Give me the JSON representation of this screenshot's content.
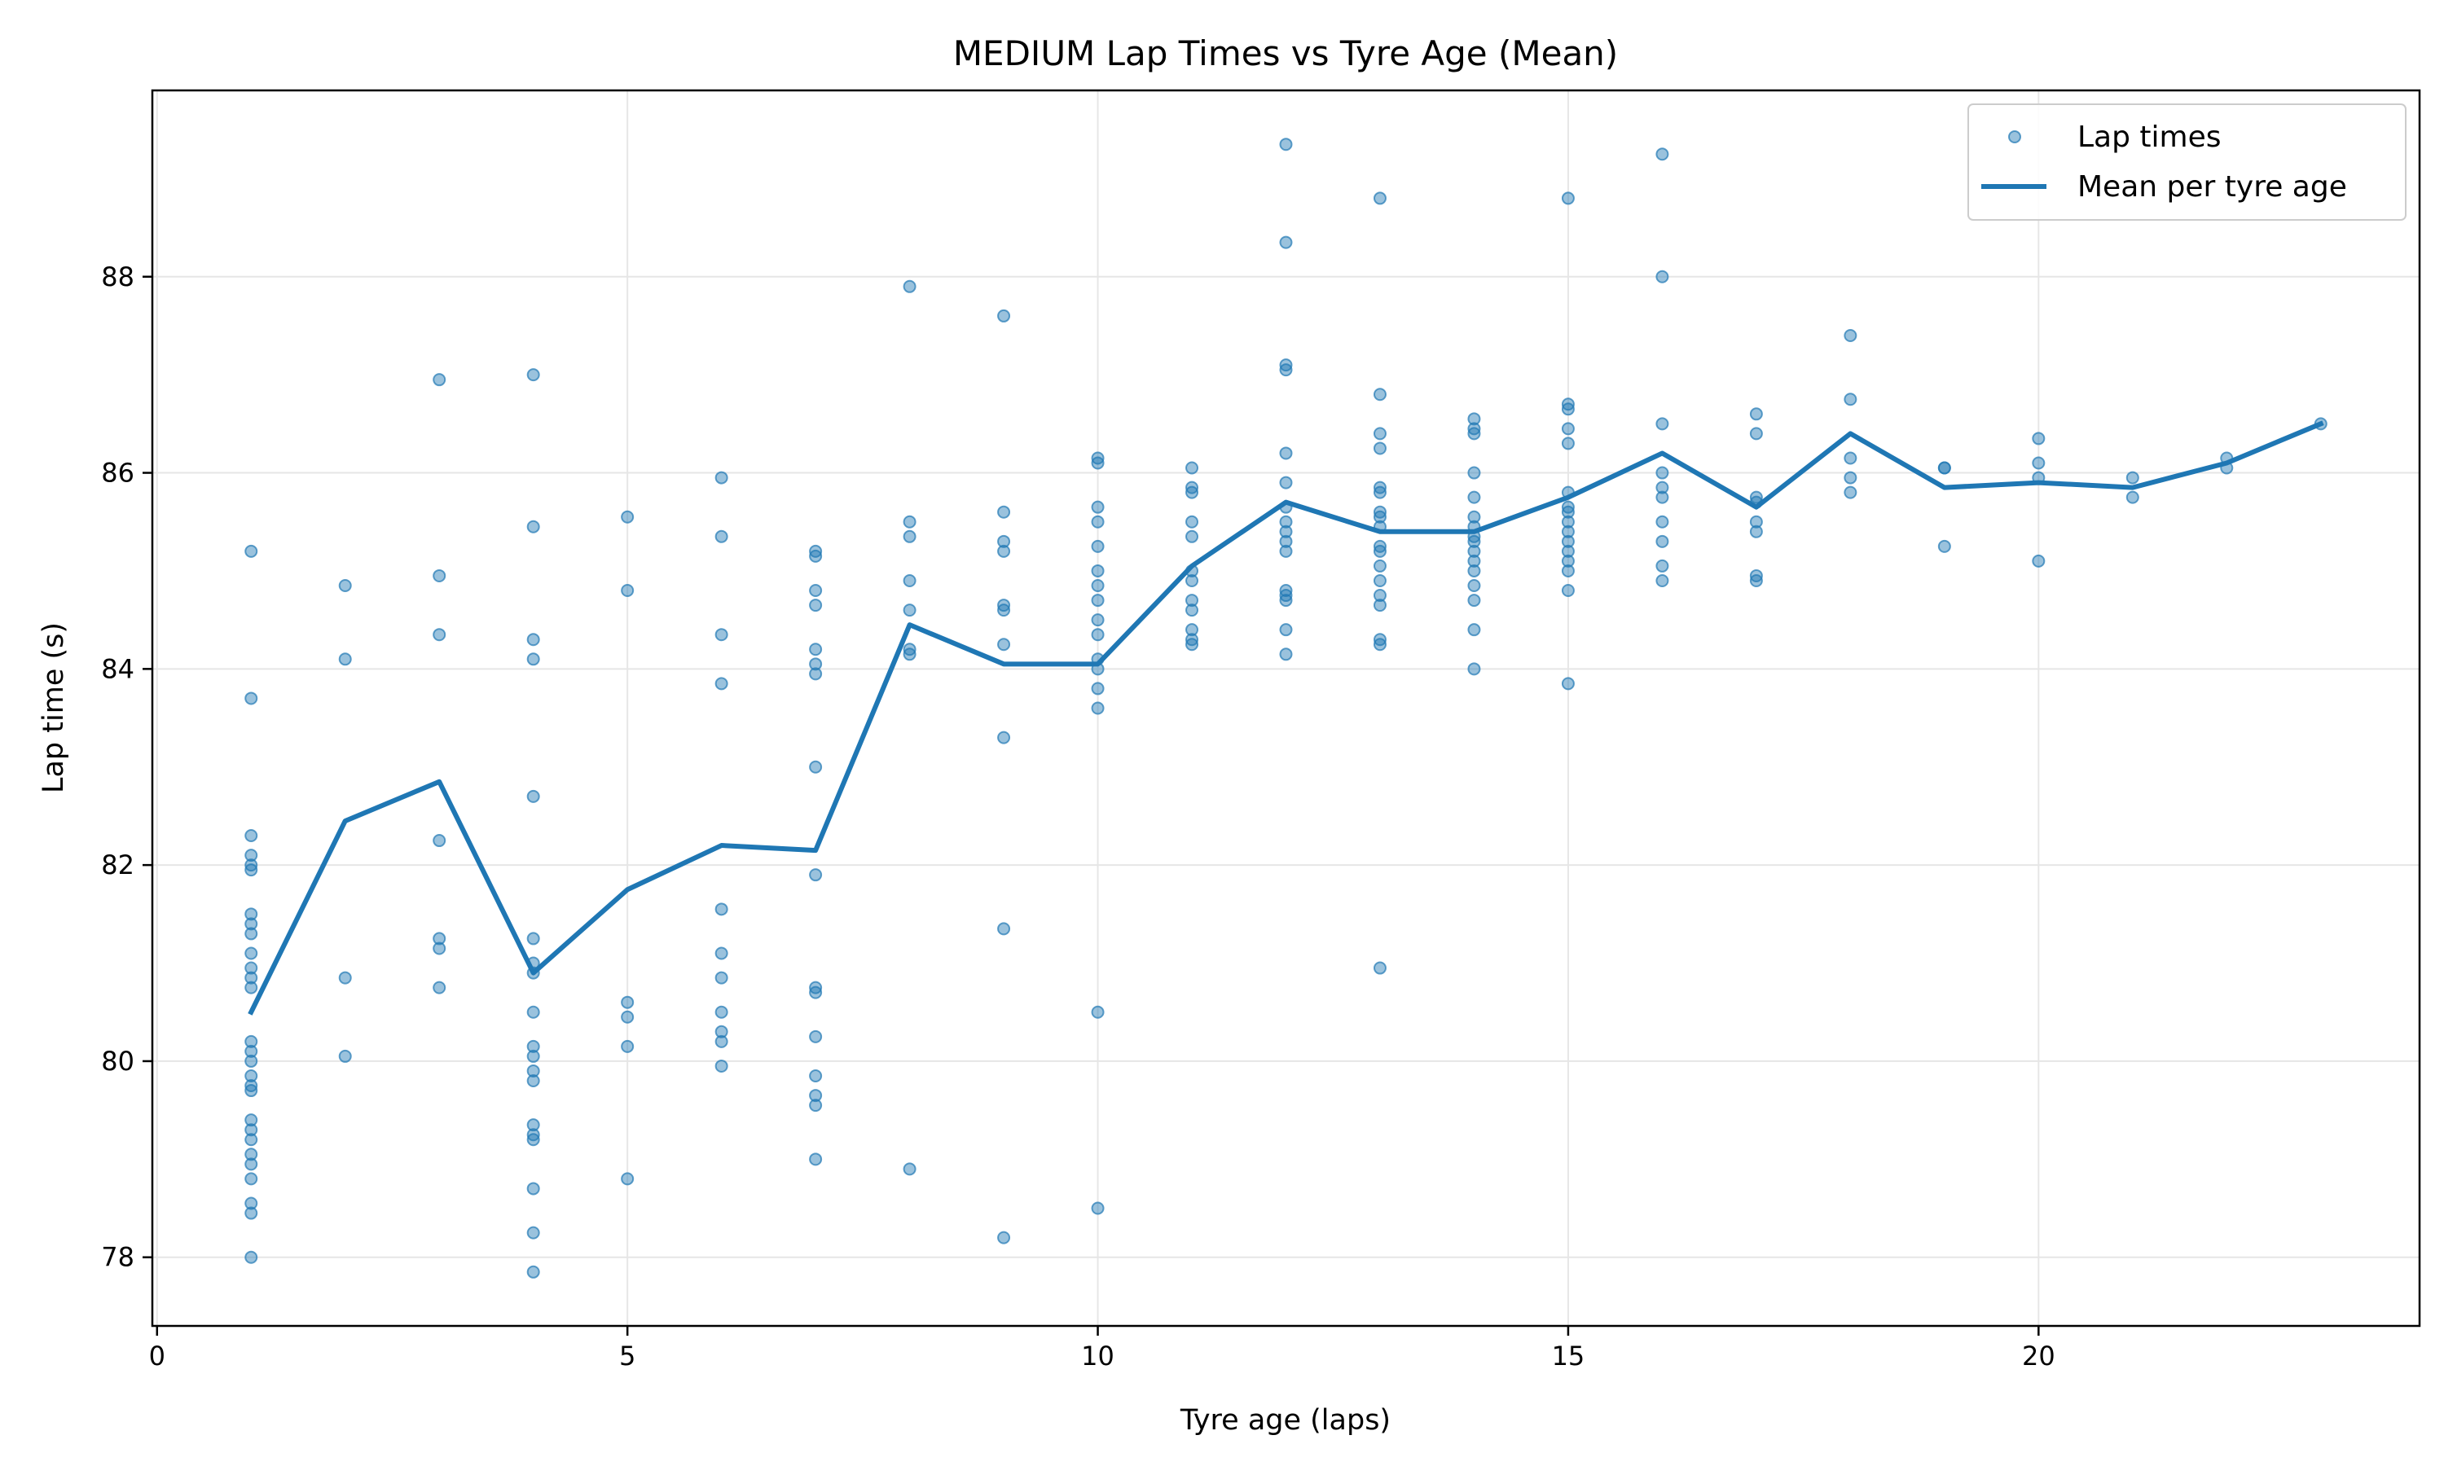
{
  "chart_data": {
    "type": "scatter",
    "title": "MEDIUM Lap Times vs Tyre Age (Mean)",
    "xlabel": "Tyre age (laps)",
    "ylabel": "Lap time (s)",
    "xlim": [
      -0.05,
      24.05
    ],
    "ylim": [
      77.3,
      89.9
    ],
    "xticks": [
      0,
      5,
      10,
      15,
      20
    ],
    "yticks": [
      78,
      80,
      82,
      84,
      86,
      88
    ],
    "grid": true,
    "legend_position": "top-right",
    "colors": {
      "series": "#1f77b4",
      "grid": "#e6e6e6"
    },
    "series": [
      {
        "name": "Lap times",
        "type": "scatter",
        "points": [
          [
            1,
            85.2
          ],
          [
            1,
            83.7
          ],
          [
            1,
            82.3
          ],
          [
            1,
            82.1
          ],
          [
            1,
            82.0
          ],
          [
            1,
            81.95
          ],
          [
            1,
            81.5
          ],
          [
            1,
            81.4
          ],
          [
            1,
            81.3
          ],
          [
            1,
            81.1
          ],
          [
            1,
            80.95
          ],
          [
            1,
            80.85
          ],
          [
            1,
            80.75
          ],
          [
            1,
            80.2
          ],
          [
            1,
            80.1
          ],
          [
            1,
            80.0
          ],
          [
            1,
            79.85
          ],
          [
            1,
            79.75
          ],
          [
            1,
            79.7
          ],
          [
            1,
            79.4
          ],
          [
            1,
            79.3
          ],
          [
            1,
            79.2
          ],
          [
            1,
            79.05
          ],
          [
            1,
            78.95
          ],
          [
            1,
            78.8
          ],
          [
            1,
            78.55
          ],
          [
            1,
            78.45
          ],
          [
            1,
            78.0
          ],
          [
            2,
            84.85
          ],
          [
            2,
            84.1
          ],
          [
            2,
            80.85
          ],
          [
            2,
            80.05
          ],
          [
            3,
            86.95
          ],
          [
            3,
            84.95
          ],
          [
            3,
            84.35
          ],
          [
            3,
            82.25
          ],
          [
            3,
            81.25
          ],
          [
            3,
            81.15
          ],
          [
            3,
            80.75
          ],
          [
            4,
            87.0
          ],
          [
            4,
            85.45
          ],
          [
            4,
            84.3
          ],
          [
            4,
            84.1
          ],
          [
            4,
            82.7
          ],
          [
            4,
            81.25
          ],
          [
            4,
            81.0
          ],
          [
            4,
            80.9
          ],
          [
            4,
            80.5
          ],
          [
            4,
            80.15
          ],
          [
            4,
            80.05
          ],
          [
            4,
            79.9
          ],
          [
            4,
            79.8
          ],
          [
            4,
            79.35
          ],
          [
            4,
            79.25
          ],
          [
            4,
            79.2
          ],
          [
            4,
            78.7
          ],
          [
            4,
            78.25
          ],
          [
            4,
            77.85
          ],
          [
            5,
            85.55
          ],
          [
            5,
            84.8
          ],
          [
            5,
            80.6
          ],
          [
            5,
            80.45
          ],
          [
            5,
            80.15
          ],
          [
            5,
            78.8
          ],
          [
            6,
            85.95
          ],
          [
            6,
            85.35
          ],
          [
            6,
            84.35
          ],
          [
            6,
            83.85
          ],
          [
            6,
            81.55
          ],
          [
            6,
            81.1
          ],
          [
            6,
            80.85
          ],
          [
            6,
            80.5
          ],
          [
            6,
            80.3
          ],
          [
            6,
            80.2
          ],
          [
            6,
            79.95
          ],
          [
            7,
            85.2
          ],
          [
            7,
            85.15
          ],
          [
            7,
            84.8
          ],
          [
            7,
            84.65
          ],
          [
            7,
            84.2
          ],
          [
            7,
            84.05
          ],
          [
            7,
            83.95
          ],
          [
            7,
            83.0
          ],
          [
            7,
            81.9
          ],
          [
            7,
            80.75
          ],
          [
            7,
            80.7
          ],
          [
            7,
            80.25
          ],
          [
            7,
            79.85
          ],
          [
            7,
            79.65
          ],
          [
            7,
            79.55
          ],
          [
            7,
            79.0
          ],
          [
            8,
            87.9
          ],
          [
            8,
            85.5
          ],
          [
            8,
            85.35
          ],
          [
            8,
            84.9
          ],
          [
            8,
            84.6
          ],
          [
            8,
            84.2
          ],
          [
            8,
            84.15
          ],
          [
            8,
            78.9
          ],
          [
            9,
            87.6
          ],
          [
            9,
            85.6
          ],
          [
            9,
            85.3
          ],
          [
            9,
            85.2
          ],
          [
            9,
            84.65
          ],
          [
            9,
            84.6
          ],
          [
            9,
            84.25
          ],
          [
            9,
            83.3
          ],
          [
            9,
            81.35
          ],
          [
            9,
            78.2
          ],
          [
            10,
            86.15
          ],
          [
            10,
            86.1
          ],
          [
            10,
            85.65
          ],
          [
            10,
            85.5
          ],
          [
            10,
            85.25
          ],
          [
            10,
            85.0
          ],
          [
            10,
            84.85
          ],
          [
            10,
            84.7
          ],
          [
            10,
            84.5
          ],
          [
            10,
            84.35
          ],
          [
            10,
            84.1
          ],
          [
            10,
            84.0
          ],
          [
            10,
            83.8
          ],
          [
            10,
            83.6
          ],
          [
            10,
            80.5
          ],
          [
            10,
            78.5
          ],
          [
            11,
            86.05
          ],
          [
            11,
            85.85
          ],
          [
            11,
            85.8
          ],
          [
            11,
            85.5
          ],
          [
            11,
            85.35
          ],
          [
            11,
            85.0
          ],
          [
            11,
            84.9
          ],
          [
            11,
            84.7
          ],
          [
            11,
            84.6
          ],
          [
            11,
            84.4
          ],
          [
            11,
            84.3
          ],
          [
            11,
            84.25
          ],
          [
            12,
            89.35
          ],
          [
            12,
            88.35
          ],
          [
            12,
            87.1
          ],
          [
            12,
            87.05
          ],
          [
            12,
            86.2
          ],
          [
            12,
            85.9
          ],
          [
            12,
            85.65
          ],
          [
            12,
            85.5
          ],
          [
            12,
            85.4
          ],
          [
            12,
            85.3
          ],
          [
            12,
            85.2
          ],
          [
            12,
            84.8
          ],
          [
            12,
            84.75
          ],
          [
            12,
            84.7
          ],
          [
            12,
            84.4
          ],
          [
            12,
            84.15
          ],
          [
            13,
            88.8
          ],
          [
            13,
            86.8
          ],
          [
            13,
            86.4
          ],
          [
            13,
            86.25
          ],
          [
            13,
            85.85
          ],
          [
            13,
            85.8
          ],
          [
            13,
            85.6
          ],
          [
            13,
            85.55
          ],
          [
            13,
            85.45
          ],
          [
            13,
            85.25
          ],
          [
            13,
            85.2
          ],
          [
            13,
            85.05
          ],
          [
            13,
            84.9
          ],
          [
            13,
            84.75
          ],
          [
            13,
            84.65
          ],
          [
            13,
            84.3
          ],
          [
            13,
            84.25
          ],
          [
            13,
            80.95
          ],
          [
            14,
            86.55
          ],
          [
            14,
            86.45
          ],
          [
            14,
            86.4
          ],
          [
            14,
            86.0
          ],
          [
            14,
            85.75
          ],
          [
            14,
            85.55
          ],
          [
            14,
            85.45
          ],
          [
            14,
            85.35
          ],
          [
            14,
            85.3
          ],
          [
            14,
            85.2
          ],
          [
            14,
            85.1
          ],
          [
            14,
            85.0
          ],
          [
            14,
            84.85
          ],
          [
            14,
            84.7
          ],
          [
            14,
            84.4
          ],
          [
            14,
            84.0
          ],
          [
            15,
            88.8
          ],
          [
            15,
            86.7
          ],
          [
            15,
            86.65
          ],
          [
            15,
            86.45
          ],
          [
            15,
            86.3
          ],
          [
            15,
            85.8
          ],
          [
            15,
            85.65
          ],
          [
            15,
            85.6
          ],
          [
            15,
            85.5
          ],
          [
            15,
            85.4
          ],
          [
            15,
            85.3
          ],
          [
            15,
            85.2
          ],
          [
            15,
            85.1
          ],
          [
            15,
            85.0
          ],
          [
            15,
            84.8
          ],
          [
            15,
            83.85
          ],
          [
            16,
            89.25
          ],
          [
            16,
            88.0
          ],
          [
            16,
            86.5
          ],
          [
            16,
            86.0
          ],
          [
            16,
            85.85
          ],
          [
            16,
            85.75
          ],
          [
            16,
            85.5
          ],
          [
            16,
            85.3
          ],
          [
            16,
            85.05
          ],
          [
            16,
            84.9
          ],
          [
            17,
            86.6
          ],
          [
            17,
            86.4
          ],
          [
            17,
            85.75
          ],
          [
            17,
            85.7
          ],
          [
            17,
            85.5
          ],
          [
            17,
            85.4
          ],
          [
            17,
            84.95
          ],
          [
            17,
            84.9
          ],
          [
            18,
            87.4
          ],
          [
            18,
            86.75
          ],
          [
            18,
            86.15
          ],
          [
            18,
            85.95
          ],
          [
            18,
            85.8
          ],
          [
            19,
            86.05
          ],
          [
            19,
            86.05
          ],
          [
            19,
            85.25
          ],
          [
            20,
            86.35
          ],
          [
            20,
            86.1
          ],
          [
            20,
            85.95
          ],
          [
            20,
            85.1
          ],
          [
            21,
            85.95
          ],
          [
            21,
            85.75
          ],
          [
            22,
            86.15
          ],
          [
            22,
            86.05
          ],
          [
            23,
            86.5
          ]
        ]
      },
      {
        "name": "Mean per tyre age",
        "type": "line",
        "x": [
          1,
          2,
          3,
          4,
          5,
          6,
          7,
          8,
          9,
          10,
          11,
          12,
          13,
          14,
          15,
          16,
          17,
          18,
          19,
          20,
          21,
          22,
          23
        ],
        "y": [
          80.5,
          82.45,
          82.85,
          80.9,
          81.75,
          82.2,
          82.15,
          84.45,
          84.05,
          84.05,
          85.05,
          85.7,
          85.4,
          85.4,
          85.75,
          86.2,
          85.65,
          86.4,
          85.85,
          85.9,
          85.85,
          86.1,
          86.5
        ]
      }
    ]
  }
}
